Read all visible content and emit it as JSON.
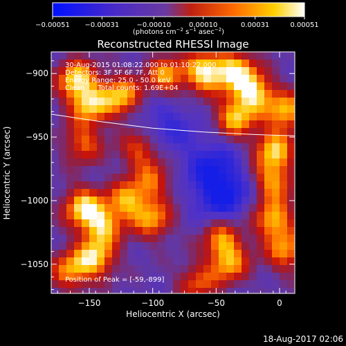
{
  "chart_data": {
    "type": "heatmap",
    "title": "Reconstructed RHESSI Image",
    "xlabel": "Heliocentric X (arcsec)",
    "ylabel": "Heliocentric Y (arcsec)",
    "xlim": [
      -180,
      12
    ],
    "ylim": [
      -1073,
      -883
    ],
    "x_ticks": [
      -150,
      -100,
      -50,
      0
    ],
    "x_tick_labels": [
      "−150",
      "−100",
      "−50",
      "0"
    ],
    "y_ticks": [
      -900,
      -950,
      -1000,
      -1050
    ],
    "y_tick_labels": [
      "−900",
      "−950",
      "−1000",
      "−1050"
    ],
    "colorbar": {
      "ticks": [
        -0.00051,
        -0.00031,
        -0.0001,
        0.0001,
        0.00031,
        0.00051
      ],
      "tick_labels": [
        "−0.00051",
        "−0.00031",
        "−0.00010",
        "0.00010",
        "0.00031",
        "0.00051"
      ],
      "unit_label_parts": [
        "(photons cm",
        "−2",
        " s",
        "−1",
        " asec",
        "−2",
        ")"
      ],
      "range": [
        -0.00051,
        0.00051
      ],
      "colormap": "blue-purple-red-yellow-white"
    },
    "annotations": [
      "30-Aug-2015 01:08:22.000 to 01:10:22.000",
      "Detectors: 3F 5F 6F 7F, Att 0",
      "Energy Range: 25.0 - 50.0 keV",
      "Clean      Total counts: 1.69E+04"
    ],
    "peak_label": "Position of Peak = [-59,-899]",
    "peak_position": [
      -59,
      -899
    ],
    "limb_curve": {
      "x": [
        -180,
        -140,
        -100,
        -60,
        -20,
        12
      ],
      "y": [
        -932,
        -938,
        -943,
        -946,
        -948,
        -949
      ]
    },
    "hot_spots": [
      {
        "x": -160,
        "y": -905,
        "intensity": 0.9
      },
      {
        "x": -125,
        "y": -918,
        "intensity": 0.85
      },
      {
        "x": -150,
        "y": -925,
        "intensity": 0.8
      },
      {
        "x": -90,
        "y": -902,
        "intensity": 0.75
      },
      {
        "x": -59,
        "y": -899,
        "intensity": 1.0
      },
      {
        "x": -35,
        "y": -898,
        "intensity": 0.9
      },
      {
        "x": -20,
        "y": -915,
        "intensity": 0.9
      },
      {
        "x": -35,
        "y": -935,
        "intensity": 0.85
      },
      {
        "x": 5,
        "y": -930,
        "intensity": 0.8
      },
      {
        "x": -5,
        "y": -960,
        "intensity": 0.85
      },
      {
        "x": -5,
        "y": -985,
        "intensity": 0.75
      },
      {
        "x": -155,
        "y": -955,
        "intensity": 0.6
      },
      {
        "x": -110,
        "y": -960,
        "intensity": 0.6
      },
      {
        "x": -100,
        "y": -985,
        "intensity": 0.55
      },
      {
        "x": -155,
        "y": -1005,
        "intensity": 0.9
      },
      {
        "x": -120,
        "y": -1000,
        "intensity": 0.75
      },
      {
        "x": -140,
        "y": -1020,
        "intensity": 0.8
      },
      {
        "x": -100,
        "y": -1015,
        "intensity": 0.7
      },
      {
        "x": -145,
        "y": -1045,
        "intensity": 0.85
      },
      {
        "x": -165,
        "y": -1055,
        "intensity": 0.7
      },
      {
        "x": -45,
        "y": -1030,
        "intensity": 0.7
      },
      {
        "x": -40,
        "y": -1050,
        "intensity": 0.7
      },
      {
        "x": -5,
        "y": -1015,
        "intensity": 0.85
      },
      {
        "x": 5,
        "y": -1040,
        "intensity": 0.7
      },
      {
        "x": -65,
        "y": -1065,
        "intensity": 0.55
      }
    ],
    "cold_spots": [
      {
        "x": -45,
        "y": -995,
        "intensity": 1.0
      },
      {
        "x": -90,
        "y": -940,
        "intensity": 0.6
      },
      {
        "x": -55,
        "y": -970,
        "intensity": 0.6
      }
    ]
  },
  "footer": {
    "timestamp": "18-Aug-2017 02:06"
  }
}
